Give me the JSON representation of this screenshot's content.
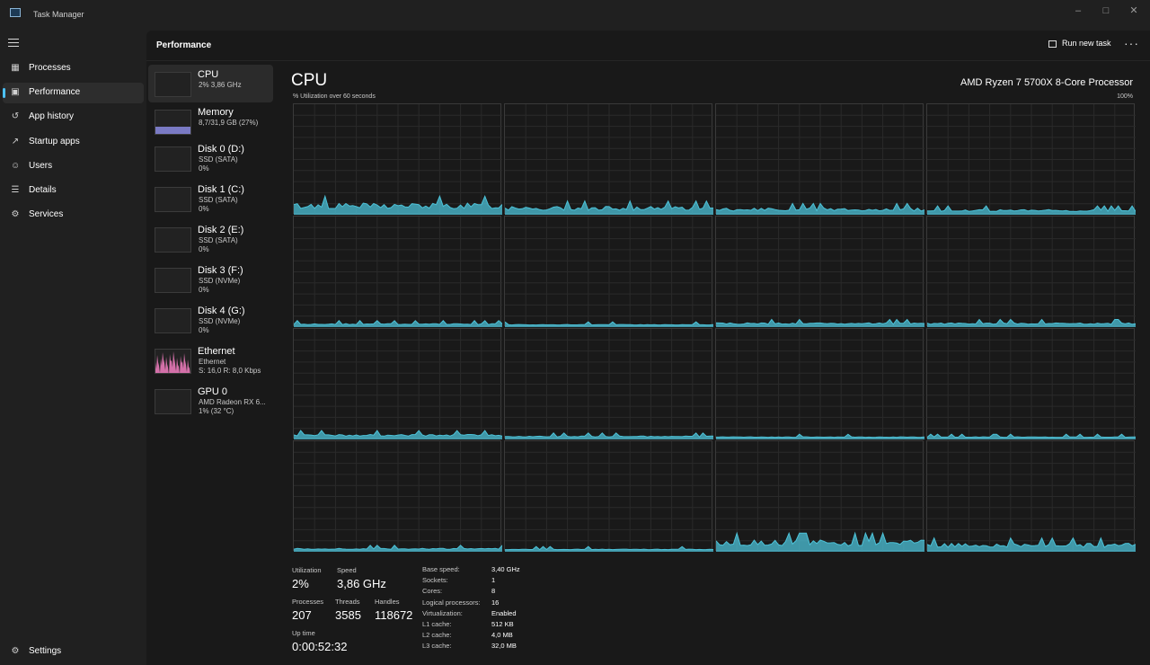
{
  "app": {
    "title": "Task Manager"
  },
  "nav": {
    "items": [
      {
        "label": "Processes",
        "icon": "processes-icon"
      },
      {
        "label": "Performance",
        "icon": "performance-icon"
      },
      {
        "label": "App history",
        "icon": "app-history-icon"
      },
      {
        "label": "Startup apps",
        "icon": "startup-apps-icon"
      },
      {
        "label": "Users",
        "icon": "users-icon"
      },
      {
        "label": "Details",
        "icon": "details-icon"
      },
      {
        "label": "Services",
        "icon": "services-icon"
      }
    ],
    "settings_label": "Settings",
    "active_index": 1
  },
  "header": {
    "title": "Performance",
    "run_new_task": "Run new task"
  },
  "devices": [
    {
      "name": "CPU",
      "line1": "2% 3,86 GHz",
      "line2": "",
      "color": "#4cc2d8",
      "active": true
    },
    {
      "name": "Memory",
      "line1": "8,7/31,9 GB (27%)",
      "line2": "",
      "color": "#8a8ae0"
    },
    {
      "name": "Disk 0 (D:)",
      "line1": "SSD (SATA)",
      "line2": "0%",
      "color": "#7fbf4c"
    },
    {
      "name": "Disk 1 (C:)",
      "line1": "SSD (SATA)",
      "line2": "0%",
      "color": "#7fbf4c"
    },
    {
      "name": "Disk 2 (E:)",
      "line1": "SSD (SATA)",
      "line2": "0%",
      "color": "#7fbf4c"
    },
    {
      "name": "Disk 3 (F:)",
      "line1": "SSD (NVMe)",
      "line2": "0%",
      "color": "#7fbf4c"
    },
    {
      "name": "Disk 4 (G:)",
      "line1": "SSD (NVMe)",
      "line2": "0%",
      "color": "#7fbf4c"
    },
    {
      "name": "Ethernet",
      "line1": "Ethernet",
      "line2": "S: 16,0 R: 8,0 Kbps",
      "color": "#e879b8"
    },
    {
      "name": "GPU 0",
      "line1": "AMD Radeon RX 6...",
      "line2": "1% (32 °C)",
      "color": "#4cc2d8"
    }
  ],
  "cpu": {
    "title": "CPU",
    "model": "AMD Ryzen 7 5700X 8-Core Processor",
    "util_label": "% Utilization over 60 seconds",
    "max_label": "100%",
    "graph_color": "#4cc2d8",
    "core_utilization_pct": [
      6,
      4,
      3,
      2,
      1,
      0.5,
      1.5,
      1.5,
      2,
      1,
      0.5,
      0.5,
      1,
      0.5,
      6,
      4
    ]
  },
  "stats": {
    "utilization_label": "Utilization",
    "utilization": "2%",
    "speed_label": "Speed",
    "speed": "3,86 GHz",
    "processes_label": "Processes",
    "processes": "207",
    "threads_label": "Threads",
    "threads": "3585",
    "handles_label": "Handles",
    "handles": "118672",
    "uptime_label": "Up time",
    "uptime": "0:00:52:32",
    "specs": [
      {
        "k": "Base speed:",
        "v": "3,40 GHz"
      },
      {
        "k": "Sockets:",
        "v": "1"
      },
      {
        "k": "Cores:",
        "v": "8"
      },
      {
        "k": "Logical processors:",
        "v": "16"
      },
      {
        "k": "Virtualization:",
        "v": "Enabled"
      },
      {
        "k": "L1 cache:",
        "v": "512 KB"
      },
      {
        "k": "L2 cache:",
        "v": "4,0 MB"
      },
      {
        "k": "L3 cache:",
        "v": "32,0 MB"
      }
    ]
  }
}
